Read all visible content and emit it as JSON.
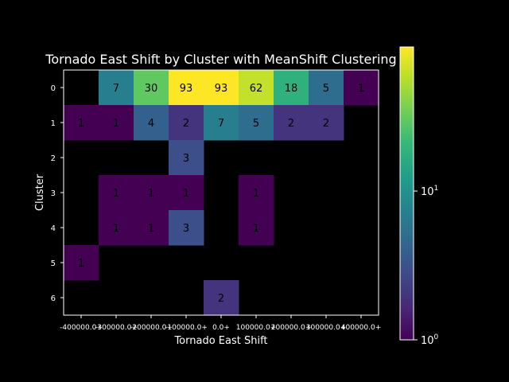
{
  "chart_data": {
    "type": "heatmap",
    "title": "Tornado East Shift by Cluster with MeanShift Clustering",
    "xlabel": "Tornado East Shift",
    "ylabel": "Cluster",
    "x_tick_labels": [
      "-400000.0+",
      "-300000.0+",
      "-200000.0+",
      "-100000.0+",
      "0.0+",
      "100000.0+",
      "200000.0+",
      "300000.0+",
      "400000.0+"
    ],
    "y_tick_labels": [
      "0",
      "1",
      "2",
      "3",
      "4",
      "5",
      "6"
    ],
    "values": [
      [
        null,
        7,
        30,
        93,
        93,
        62,
        18,
        5,
        1
      ],
      [
        1,
        1,
        4,
        2,
        7,
        5,
        2,
        2,
        null
      ],
      [
        null,
        null,
        null,
        3,
        null,
        null,
        null,
        null,
        null
      ],
      [
        null,
        1,
        1,
        1,
        null,
        1,
        null,
        null,
        null
      ],
      [
        null,
        1,
        1,
        3,
        null,
        1,
        null,
        null,
        null
      ],
      [
        1,
        null,
        null,
        null,
        null,
        null,
        null,
        null,
        null
      ],
      [
        null,
        null,
        null,
        null,
        2,
        null,
        null,
        null,
        null
      ]
    ],
    "color_scale": "log",
    "colormap": "viridis",
    "vmin": 1,
    "vmax": 93,
    "colorbar_ticks": [
      {
        "value": 1,
        "base": "10",
        "exp": "0"
      },
      {
        "value": 10,
        "base": "10",
        "exp": "1"
      }
    ],
    "background_color": "#000000",
    "grid": false
  }
}
